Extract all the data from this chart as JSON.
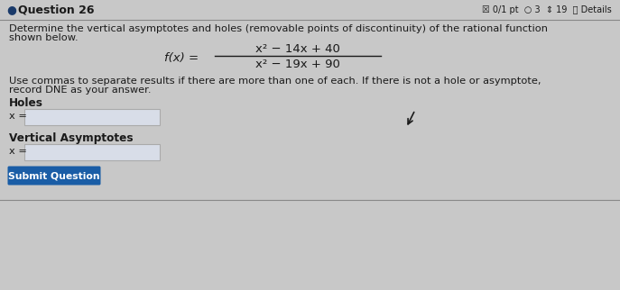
{
  "bg_color": "#c8c8c8",
  "header_bg": "#c8c8c8",
  "text_color": "#1a1a1a",
  "text_color_dark": "#222222",
  "header_text": "Question 26",
  "header_right": "☒ 0/1 pt  ○ 3  ⇕ 19  ⓘ Details",
  "body_text_line1": "Determine the vertical asymptotes and holes (removable points of discontinuity) of the rational function",
  "body_text_line2": "shown below.",
  "func_label": "f(x) =",
  "numerator": "x² − 14x + 40",
  "denominator": "x² − 19x + 90",
  "instruction_line1": "Use commas to separate results if there are more than one of each. If there is not a hole or asymptote,",
  "instruction_line2": "record DNE as your answer.",
  "holes_label": "Holes",
  "holes_x_label": "x =",
  "asymptotes_label": "Vertical Asymptotes",
  "asymptotes_x_label": "x =",
  "button_text": "Submit Question",
  "button_color": "#1a5da6",
  "input_box_color": "#d8dde8",
  "input_box_border": "#aaaaaa",
  "sep_line_color": "#888888",
  "bullet_color": "#1a3a6a",
  "font_size_header": 9,
  "font_size_body": 8.2,
  "font_size_math": 9.5,
  "font_size_label": 8.2,
  "font_size_button": 7.8
}
